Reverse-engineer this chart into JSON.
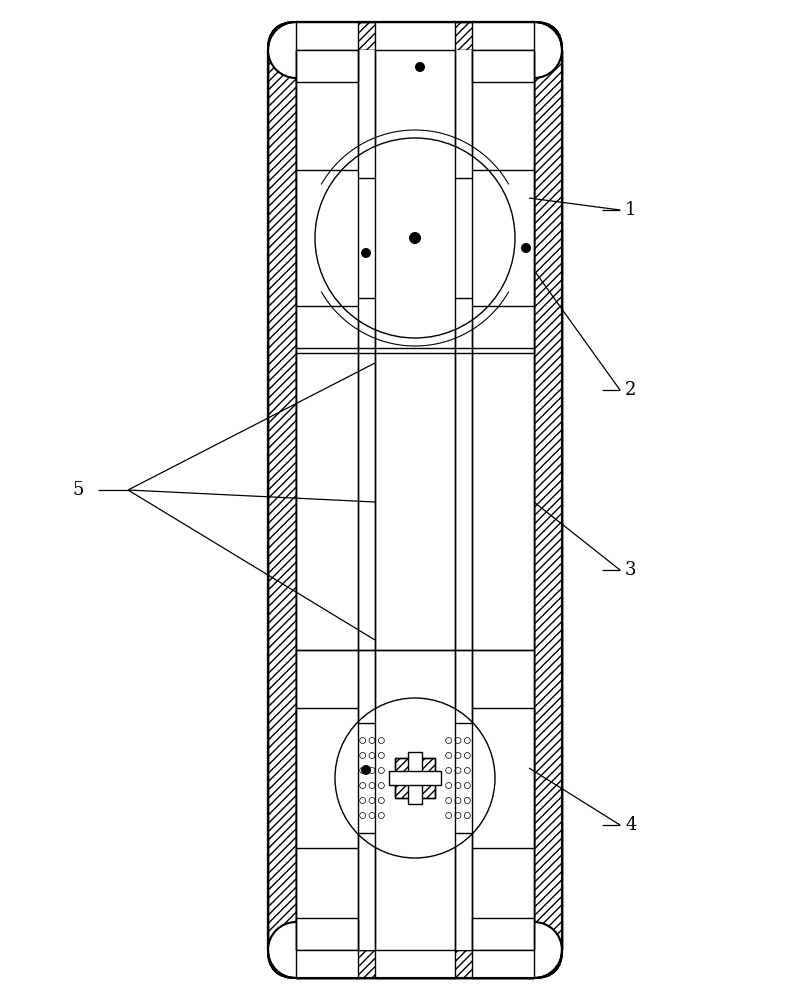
{
  "bg_color": "#ffffff",
  "line_color": "#000000",
  "fig_width": 7.92,
  "fig_height": 10.0,
  "dpi": 100
}
